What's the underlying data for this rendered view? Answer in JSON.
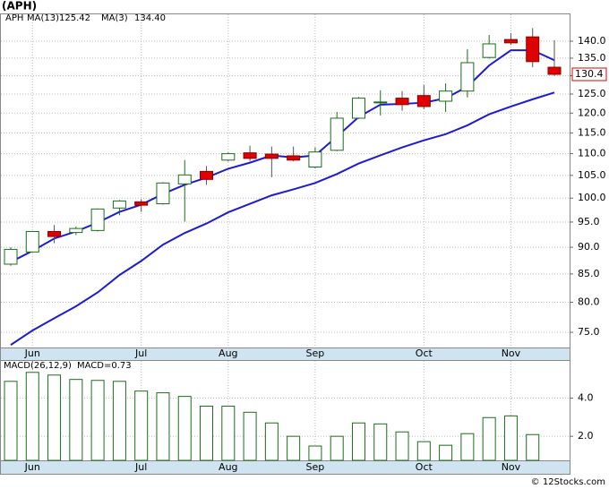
{
  "title": "(APH)",
  "footer": "© 12Stocks.com",
  "chart_data": [
    {
      "type": "candlestick",
      "symbol": "APH",
      "log_scale": true,
      "grid": true,
      "categories": [
        null,
        "Jun",
        null,
        null,
        null,
        null,
        "Jul",
        null,
        null,
        null,
        "Aug",
        null,
        null,
        null,
        "Sep",
        null,
        null,
        null,
        null,
        "Oct",
        null,
        null,
        null,
        "Nov",
        null,
        null
      ],
      "open": [
        86.8,
        89.1,
        93.1,
        92.9,
        93.3,
        97.9,
        99.2,
        98.8,
        103.1,
        105.9,
        108.5,
        110.2,
        109.9,
        109.5,
        106.9,
        110.8,
        118.7,
        122.9,
        123.9,
        124.6,
        123.1,
        125.8,
        135.2,
        140.5,
        141.3,
        132.4
      ],
      "high": [
        90.0,
        93.2,
        94.4,
        94.1,
        97.8,
        99.6,
        99.8,
        103.5,
        108.5,
        107.1,
        110.3,
        111.9,
        111.7,
        111.7,
        111.5,
        120.3,
        124.2,
        126.0,
        125.8,
        127.5,
        127.9,
        137.6,
        141.9,
        142.4,
        144.0,
        140.3
      ],
      "low": [
        86.5,
        89.0,
        90.8,
        92.4,
        93.1,
        96.4,
        97.1,
        98.6,
        95.1,
        102.9,
        108.2,
        108.3,
        104.6,
        108.2,
        106.6,
        110.6,
        118.5,
        119.4,
        120.6,
        121.0,
        120.3,
        124.1,
        134.9,
        138.9,
        132.4,
        130.0
      ],
      "close": [
        89.6,
        93.1,
        92.1,
        93.7,
        97.7,
        99.4,
        98.5,
        103.3,
        105.1,
        104.1,
        110.0,
        108.9,
        108.9,
        108.5,
        110.4,
        118.7,
        123.9,
        122.9,
        122.2,
        121.7,
        125.8,
        133.7,
        139.2,
        139.5,
        134.0,
        130.4
      ],
      "up_color": "#1a6e1a",
      "down_color": "#e00000",
      "series": [
        {
          "name": "MA(13)",
          "last": {
            "value": 125.42,
            "label": "125.42"
          },
          "color": "#1c1cd4",
          "values": [
            73.0,
            75.3,
            77.3,
            79.3,
            81.7,
            84.8,
            87.4,
            90.5,
            92.8,
            94.7,
            97.0,
            98.8,
            100.6,
            101.9,
            103.3,
            105.3,
            107.7,
            109.6,
            111.5,
            113.2,
            114.7,
            116.9,
            119.7,
            121.7,
            123.6,
            125.42
          ]
        },
        {
          "name": "MA(3)",
          "last": {
            "value": 134.4,
            "label": "134.40"
          },
          "color": "#1c1cd4",
          "values": [
            87.2,
            89.3,
            91.7,
            93.1,
            94.9,
            97.1,
            98.6,
            100.9,
            102.9,
            104.5,
            106.5,
            107.9,
            109.6,
            109.1,
            109.6,
            114.1,
            119.0,
            122.2,
            122.4,
            122.7,
            123.9,
            127.0,
            132.9,
            137.3,
            137.3,
            134.4
          ]
        }
      ],
      "last_price": 130.4,
      "ylim": [
        72.6,
        148.3
      ],
      "yticks": [
        {
          "value": 75,
          "label": "75.0"
        },
        {
          "value": 80,
          "label": "80.0"
        },
        {
          "value": 85,
          "label": "85.0"
        },
        {
          "value": 90,
          "label": "90.0"
        },
        {
          "value": 95,
          "label": "95.0"
        },
        {
          "value": 100,
          "label": "100.0"
        },
        {
          "value": 105,
          "label": "105.0"
        },
        {
          "value": 110,
          "label": "110.0"
        },
        {
          "value": 115,
          "label": "115.0"
        },
        {
          "value": 120,
          "label": "120.0"
        },
        {
          "value": 125,
          "label": "125.0"
        },
        {
          "value": 130,
          "label": "130.0"
        },
        {
          "value": 135,
          "label": "135.0"
        },
        {
          "value": 140,
          "label": "140.0"
        }
      ]
    },
    {
      "type": "bar",
      "title": "MACD(26,12,9)",
      "subtitle": "MACD=0.73",
      "grid": true,
      "color": "#1a6e1a",
      "categories": [
        null,
        "Jun",
        null,
        null,
        null,
        null,
        "Jul",
        null,
        null,
        null,
        "Aug",
        null,
        null,
        null,
        "Sep",
        null,
        null,
        null,
        null,
        "Oct",
        null,
        null,
        null,
        "Nov",
        null,
        null
      ],
      "values": [
        4.88,
        5.35,
        5.21,
        4.98,
        4.93,
        4.88,
        4.37,
        4.28,
        4.09,
        3.58,
        3.58,
        3.26,
        2.7,
        2.0,
        1.49,
        2.0,
        2.7,
        2.65,
        2.23,
        1.72,
        1.53,
        2.14,
        2.98,
        3.07,
        2.09,
        null
      ],
      "ylim": [
        0.74,
        5.95
      ],
      "yticks": [
        {
          "value": 2,
          "label": "2.0"
        },
        {
          "value": 4,
          "label": "4.0"
        }
      ]
    }
  ]
}
